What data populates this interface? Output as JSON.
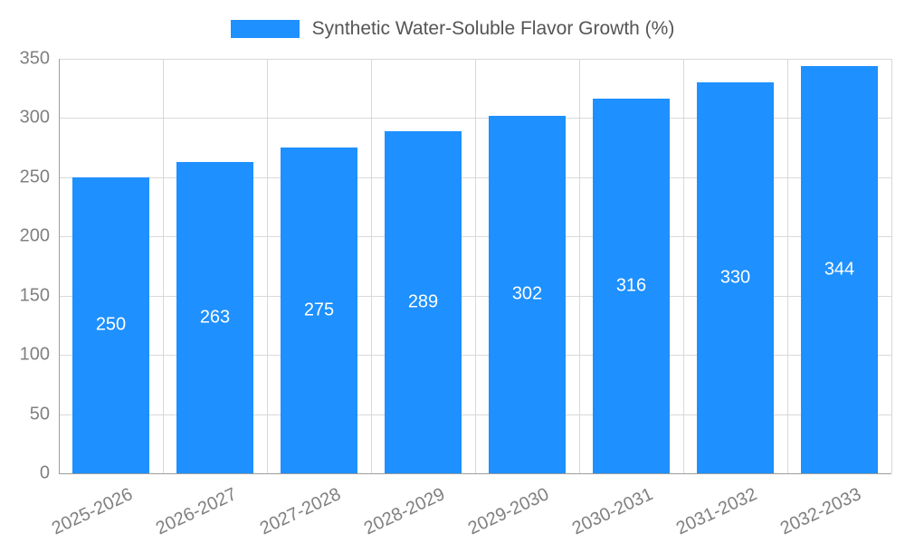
{
  "legend": {
    "label": "Synthetic Water-Soluble Flavor Growth (%)"
  },
  "colors": {
    "bar": "#1e90ff",
    "grid": "#d9d9d9",
    "axis": "#9e9e9e",
    "tick_text": "#808080",
    "value_label_text": "#ffffff",
    "legend_text": "#555555"
  },
  "chart_data": {
    "type": "bar",
    "title": "Synthetic Water-Soluble Flavor Growth (%)",
    "categories": [
      "2025-2026",
      "2026-2027",
      "2027-2028",
      "2028-2029",
      "2029-2030",
      "2030-2031",
      "2031-2032",
      "2032-2033"
    ],
    "values": [
      250,
      263,
      275,
      289,
      302,
      316,
      330,
      344
    ],
    "xlabel": "",
    "ylabel": "",
    "ylim": [
      0,
      350
    ],
    "ytick_step": 50,
    "grid": true,
    "legend_position": "top",
    "value_labels": "inside-middle"
  }
}
